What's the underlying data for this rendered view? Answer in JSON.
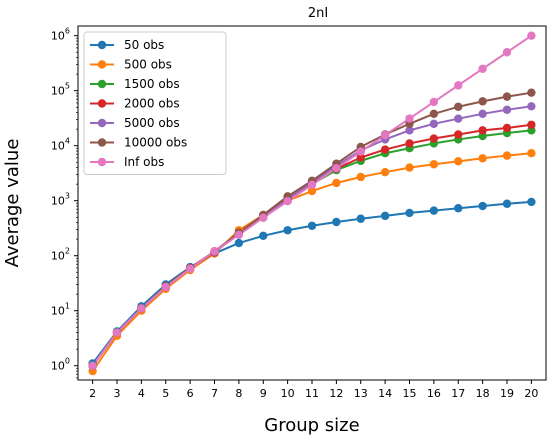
{
  "chart_data": {
    "type": "line",
    "title": "2nI",
    "xlabel": "Group size",
    "ylabel": "Average value",
    "x": [
      2,
      3,
      4,
      5,
      6,
      7,
      8,
      9,
      10,
      11,
      12,
      13,
      14,
      15,
      16,
      17,
      18,
      19,
      20
    ],
    "xlim": [
      1.4,
      20.6
    ],
    "ylim": [
      0.55,
      1500000
    ],
    "yscale": "log",
    "yticks": [
      {
        "exp": "0"
      },
      {
        "exp": "1"
      },
      {
        "exp": "2"
      },
      {
        "exp": "3"
      },
      {
        "exp": "4"
      },
      {
        "exp": "5"
      },
      {
        "exp": "6"
      }
    ],
    "tick_base": "10",
    "grid": false,
    "legend_position": "upper-left",
    "marker": "circle",
    "series": [
      {
        "name": "50 obs",
        "color": "#1f77b4",
        "values": [
          1.1,
          4.2,
          12,
          30,
          62,
          110,
          170,
          230,
          290,
          350,
          410,
          470,
          530,
          600,
          660,
          730,
          800,
          880,
          950
        ]
      },
      {
        "name": "500 obs",
        "color": "#ff7f0e",
        "values": [
          0.8,
          3.5,
          10,
          25,
          55,
          110,
          290,
          550,
          1000,
          1500,
          2100,
          2700,
          3300,
          4000,
          4600,
          5200,
          5900,
          6600,
          7300
        ]
      },
      {
        "name": "1500 obs",
        "color": "#2ca02c",
        "values": [
          1.0,
          4.0,
          11,
          27,
          60,
          115,
          260,
          530,
          1050,
          2000,
          3600,
          5300,
          7300,
          9000,
          11000,
          13000,
          15000,
          17000,
          19000
        ]
      },
      {
        "name": "2000 obs",
        "color": "#d62728",
        "values": [
          1.0,
          4.0,
          11,
          27,
          60,
          115,
          260,
          530,
          1100,
          2050,
          3800,
          6100,
          8500,
          11000,
          13500,
          16000,
          19000,
          21000,
          24000
        ]
      },
      {
        "name": "5000 obs",
        "color": "#9467bd",
        "values": [
          1.0,
          4.0,
          11,
          27,
          60,
          118,
          250,
          520,
          1050,
          2200,
          4300,
          8200,
          13000,
          19000,
          25000,
          31000,
          38000,
          45000,
          52000
        ]
      },
      {
        "name": "10000 obs",
        "color": "#8c564b",
        "values": [
          1.0,
          4.0,
          11,
          28,
          60,
          120,
          260,
          550,
          1200,
          2300,
          4700,
          9500,
          16000,
          25000,
          38000,
          51000,
          64000,
          78000,
          92000
        ]
      },
      {
        "name": "Inf obs",
        "color": "#e377c2",
        "values": [
          1.0,
          4.0,
          11,
          27,
          58,
          120,
          240,
          490,
          980,
          1950,
          3900,
          7800,
          15600,
          31200,
          62500,
          125000,
          250000,
          500000,
          1000000
        ]
      }
    ]
  }
}
